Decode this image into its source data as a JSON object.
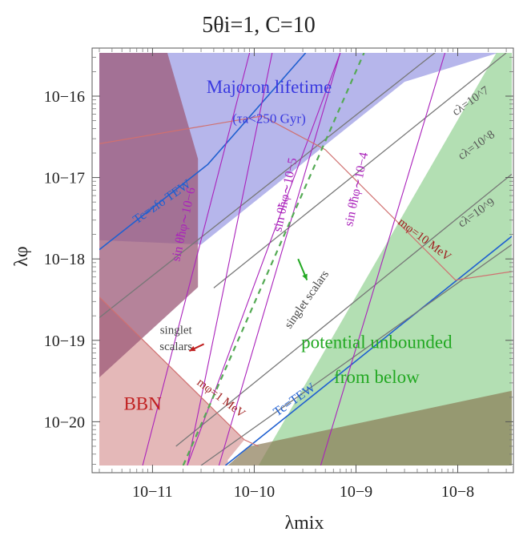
{
  "chart_data": {
    "type": "area",
    "title": "5θi=1, C=10",
    "xlabel": "λmix",
    "ylabel": "λφ",
    "x_scale": "log",
    "y_scale": "log",
    "xlim": [
      3e-12,
      3.4e-08
    ],
    "ylim": [
      2.9e-21,
      3.4e-16
    ],
    "x_ticks": [
      {
        "value": 1e-11,
        "label": "10−11"
      },
      {
        "value": 1e-10,
        "label": "10−10"
      },
      {
        "value": 1e-09,
        "label": "10−9"
      },
      {
        "value": 1e-08,
        "label": "10−8"
      }
    ],
    "y_ticks": [
      {
        "value": 1e-20,
        "label": "10−20"
      },
      {
        "value": 1e-19,
        "label": "10−19"
      },
      {
        "value": 1e-18,
        "label": "10−18"
      },
      {
        "value": 1e-17,
        "label": "10−17"
      },
      {
        "value": 1e-16,
        "label": "10−16"
      }
    ],
    "regions": [
      {
        "id": "majoron",
        "color": "#8f8fe0",
        "opacity": 0.65,
        "polygon": [
          [
            3e-12,
            1.7e-18
          ],
          [
            3e-12,
            3.4e-16
          ],
          [
            3.4e-08,
            3.4e-16
          ],
          [
            3.4e-08,
            3.4e-16
          ],
          [
            2.5e-08,
            3.4e-16
          ],
          [
            3e-09,
            1.5e-16
          ],
          [
            3e-10,
            1.5e-17
          ],
          [
            3e-11,
            1.5e-18
          ]
        ]
      },
      {
        "id": "unbounded",
        "color": "#99d49a",
        "opacity": 0.75,
        "polygon": [
          [
            1.1e-10,
            2.9e-21
          ],
          [
            3.4e-08,
            2.9e-21
          ],
          [
            3.4e-08,
            3.4e-16
          ],
          [
            2.4e-08,
            3.4e-16
          ]
        ]
      },
      {
        "id": "bbn",
        "color": "#d99a9a",
        "opacity": 0.7,
        "polygon": [
          [
            3e-12,
            2.9e-21
          ],
          [
            5.5e-11,
            2.9e-21
          ],
          [
            5.5e-11,
            3.4e-21
          ],
          [
            8e-11,
            6e-21
          ],
          [
            3e-12,
            3.4e-19
          ]
        ]
      },
      {
        "id": "left",
        "color": "#9c5a78",
        "opacity": 0.75,
        "polygon": [
          [
            3e-12,
            3.5e-20
          ],
          [
            3e-12,
            3.4e-16
          ],
          [
            1.4e-11,
            3.4e-16
          ],
          [
            2.8e-11,
            1.7e-17
          ],
          [
            2.8e-11,
            4.5e-19
          ]
        ]
      },
      {
        "id": "bottom",
        "color": "#8a7a55",
        "opacity": 0.7,
        "polygon": [
          [
            5.5e-11,
            2.9e-21
          ],
          [
            3.4e-08,
            2.9e-21
          ],
          [
            3.4e-08,
            2.4e-20
          ],
          [
            9e-11,
            5e-21
          ]
        ]
      }
    ],
    "lines": [
      {
        "id": "tc-fo",
        "color": "#2060d0",
        "width": 1.6,
        "points": [
          [
            3e-12,
            1.3e-18
          ],
          [
            3.5e-11,
            1.45e-17
          ],
          [
            3.2e-10,
            3.4e-16
          ]
        ]
      },
      {
        "id": "tc-ew",
        "color": "#2060d0",
        "width": 1.6,
        "points": [
          [
            5.2e-11,
            2.9e-21
          ],
          [
            3.4e-08,
            1.9e-18
          ]
        ]
      },
      {
        "id": "c7",
        "color": "#777777",
        "width": 1.3,
        "points": [
          [
            4e-11,
            4.4e-19
          ],
          [
            3e-08,
            3.4e-16
          ]
        ]
      },
      {
        "id": "c8",
        "color": "#777777",
        "width": 1.3,
        "points": [
          [
            1.7e-11,
            5e-21
          ],
          [
            3.4e-08,
            1.1e-17
          ]
        ]
      },
      {
        "id": "c9",
        "color": "#777777",
        "width": 1.3,
        "points": [
          [
            3e-11,
            2.9e-21
          ],
          [
            3.4e-08,
            1.5e-18
          ]
        ]
      },
      {
        "id": "c-extra",
        "color": "#777777",
        "width": 1.3,
        "points": [
          [
            3e-12,
            1.9e-19
          ],
          [
            3.4e-08,
            1.9e-15
          ]
        ]
      },
      {
        "id": "sin6",
        "color": "#aa22bb",
        "width": 1.1,
        "points": [
          [
            8e-12,
            2.9e-21
          ],
          [
            9e-11,
            3.4e-16
          ]
        ]
      },
      {
        "id": "sin5",
        "color": "#aa22bb",
        "width": 1.1,
        "points": [
          [
            2.2e-11,
            2.9e-21
          ],
          [
            7e-10,
            3.4e-16
          ]
        ]
      },
      {
        "id": "sin4",
        "color": "#aa22bb",
        "width": 1.1,
        "points": [
          [
            4.5e-11,
            2.9e-21
          ],
          [
            7e-10,
            3.4e-16
          ]
        ]
      },
      {
        "id": "sin3",
        "color": "#aa22bb",
        "width": 1.1,
        "points": [
          [
            4.5e-10,
            2.9e-21
          ],
          [
            7.5e-09,
            3.4e-16
          ]
        ]
      },
      {
        "id": "sin-low",
        "color": "#aa22bb",
        "width": 1.1,
        "points": [
          [
            2.2e-11,
            2.9e-21
          ],
          [
            1.5e-10,
            3.4e-16
          ]
        ]
      },
      {
        "id": "m10",
        "color": "#d07070",
        "width": 1.2,
        "points": [
          [
            3e-12,
            2.6e-17
          ],
          [
            1.2e-10,
            5.7e-17
          ],
          [
            5e-10,
            2.2e-17
          ],
          [
            9.5e-09,
            5.5e-19
          ],
          [
            3.4e-08,
            7e-19
          ]
        ]
      },
      {
        "id": "m1",
        "color": "#d07070",
        "width": 1.2,
        "points": [
          [
            3e-12,
            3.4e-19
          ],
          [
            8e-11,
            6e-21
          ],
          [
            1.1e-10,
            5e-21
          ]
        ]
      },
      {
        "id": "singlet-green",
        "color": "#55aa55",
        "width": 2.2,
        "dash": "7,6",
        "points": [
          [
            2e-11,
            2.9e-21
          ],
          [
            1.2e-09,
            3.4e-16
          ]
        ]
      }
    ],
    "labels": [
      {
        "text": "Majoron lifetime",
        "x": 1.4e-10,
        "y": 1.1e-16,
        "color": "#3a3ae0",
        "size": 23
      },
      {
        "text": "(τa<250 Gyr)",
        "x": 1.4e-10,
        "y": 4.7e-17,
        "color": "#3a3ae0",
        "size": 17
      },
      {
        "text": "BBN",
        "x": 8e-12,
        "y": 1.4e-20,
        "color": "#c02020",
        "size": 23
      },
      {
        "text": "potential unbounded",
        "x": 1.6e-09,
        "y": 8e-20,
        "color": "#22a822",
        "size": 23
      },
      {
        "text": "from below",
        "x": 1.6e-09,
        "y": 3e-20,
        "color": "#22a822",
        "size": 23
      },
      {
        "text": "singlet",
        "x": 1.7e-11,
        "y": 1.2e-19,
        "color": "#444444",
        "size": 15
      },
      {
        "text": "scalars",
        "x": 1.7e-11,
        "y": 7.6e-20,
        "color": "#444444",
        "size": 15
      },
      {
        "text": "Tc=zfo TEW",
        "x": 1.3e-11,
        "y": 4.6e-18,
        "color": "#2060d0",
        "size": 16,
        "angle": -35
      },
      {
        "text": "Tc=TEW",
        "x": 2.6e-10,
        "y": 1.7e-20,
        "color": "#2060d0",
        "size": 16,
        "angle": -35
      },
      {
        "text": "sin θ̃hφ∼10−6",
        "x": 2.2e-11,
        "y": 2.6e-18,
        "color": "#aa22bb",
        "size": 16,
        "angle": -78
      },
      {
        "text": "sin θ̃hφ∼10−5",
        "x": 2.2e-10,
        "y": 6e-18,
        "color": "#aa22bb",
        "size": 16,
        "angle": -78
      },
      {
        "text": "sin θ̃hφ∼10−4",
        "x": 1.1e-09,
        "y": 7e-18,
        "color": "#aa22bb",
        "size": 16,
        "angle": -78
      },
      {
        "text": "cλ=10^7",
        "x": 1.4e-08,
        "y": 8e-17,
        "color": "#555555",
        "size": 15,
        "angle": -35
      },
      {
        "text": "cλ=10^8",
        "x": 1.6e-08,
        "y": 2.3e-17,
        "color": "#555555",
        "size": 15,
        "angle": -35
      },
      {
        "text": "cλ=10^9",
        "x": 1.6e-08,
        "y": 3.4e-18,
        "color": "#555555",
        "size": 15,
        "angle": -35
      },
      {
        "text": "mφ=10 MeV",
        "x": 4.5e-09,
        "y": 1.6e-18,
        "color": "#a02020",
        "size": 15,
        "angle": 37
      },
      {
        "text": "mφ=1 MeV",
        "x": 4.5e-11,
        "y": 1.8e-20,
        "color": "#a02020",
        "size": 15,
        "angle": 37
      },
      {
        "text": "singlet scalars",
        "x": 3.5e-10,
        "y": 3e-19,
        "color": "#444444",
        "size": 15,
        "angle": -55
      }
    ],
    "arrows": [
      {
        "color": "#c02020",
        "from": [
          3.2e-11,
          9e-20
        ],
        "to": [
          2.3e-11,
          7.4e-20
        ]
      },
      {
        "color": "#22a822",
        "from": [
          2.7e-10,
          1e-18
        ],
        "to": [
          3.3e-10,
          5.5e-19
        ]
      }
    ]
  }
}
